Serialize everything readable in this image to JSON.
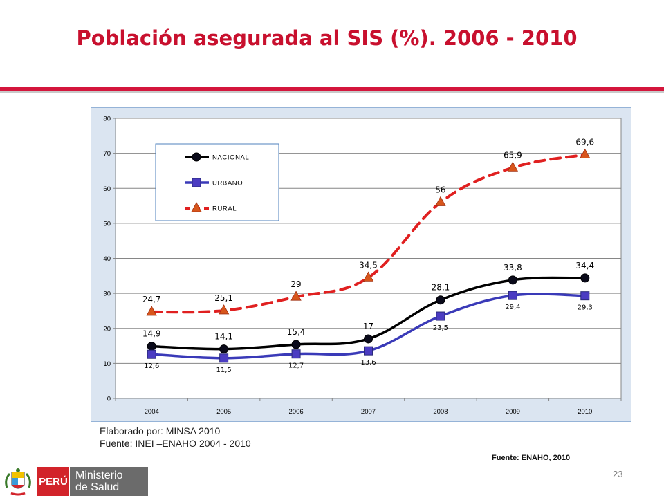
{
  "slide": {
    "title": "Población asegurada al SIS (%). 2006 - 2010",
    "credit_line1": "Elaborado por: MINSA 2010",
    "credit_line2": "Fuente: INEI –ENAHO 2004 - 2010",
    "source_right": "Fuente: ENAHO, 2010",
    "page_number": "23",
    "logo": {
      "country": "PERÚ",
      "line1": "Ministerio",
      "line2": "de Salud"
    }
  },
  "colors": {
    "title": "#c8102e",
    "rule": "#d4163c",
    "nacional": "#000000",
    "urbano": "#3a3ab8",
    "rural": "#e02020",
    "rural_marker": "#d8561c"
  },
  "chart_data": {
    "type": "line",
    "title": "",
    "xlabel": "",
    "ylabel": "",
    "categories": [
      "2004",
      "2005",
      "2006",
      "2007",
      "2008",
      "2009",
      "2010"
    ],
    "ylim": [
      0,
      80
    ],
    "yticks": [
      0,
      10,
      20,
      30,
      40,
      50,
      60,
      70,
      80
    ],
    "grid": "horizontal",
    "legend": "top-left",
    "series": [
      {
        "name": "NACIONAL",
        "values": [
          14.9,
          14.1,
          15.4,
          17,
          28.1,
          33.8,
          34.4
        ],
        "labels": [
          "14,9",
          "14,1",
          "15,4",
          "17",
          "28,1",
          "33,8",
          "34,4"
        ],
        "marker": "circle",
        "style": "solid"
      },
      {
        "name": "URBANO",
        "values": [
          12.6,
          11.5,
          12.7,
          13.6,
          23.5,
          29.4,
          29.3
        ],
        "labels": [
          "12,6",
          "11,5",
          "12,7",
          "13,6",
          "23,5",
          "29,4",
          "29,3"
        ],
        "marker": "square",
        "style": "solid"
      },
      {
        "name": "RURAL",
        "values": [
          24.7,
          25.1,
          29,
          34.5,
          56,
          65.9,
          69.6
        ],
        "labels": [
          "24,7",
          "25,1",
          "29",
          "34,5",
          "56",
          "65,9",
          "69,6"
        ],
        "marker": "triangle",
        "style": "dashed"
      }
    ]
  }
}
